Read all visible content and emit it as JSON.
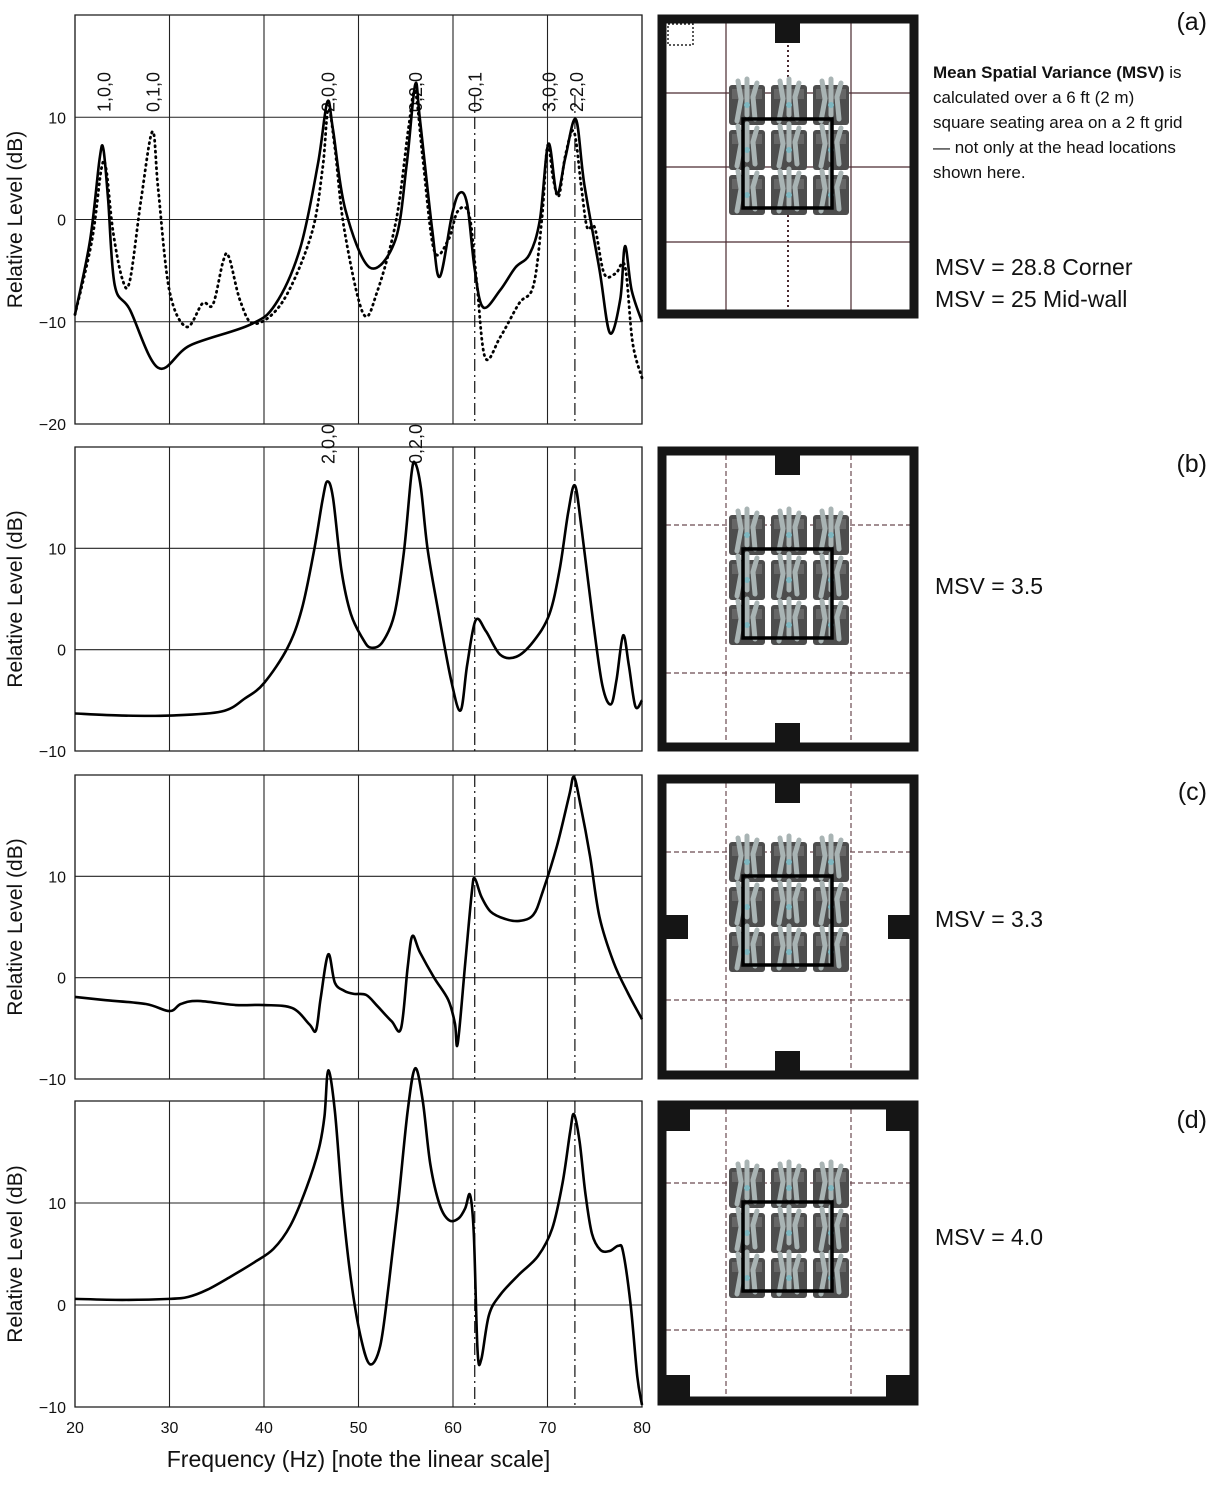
{
  "chart_data": [
    {
      "type": "line",
      "panel_label": "(a)",
      "ylabel": "Relative Level (dB)",
      "annotation_bold": "Mean Spatial Variance (MSV)",
      "annotation": "is calculated over a 6 ft (2 m) square seating area on a 2 ft grid — not only at the head locations shown here.",
      "msv": [
        "MSV = 28.8 Corner",
        "MSV = 25 Mid-wall"
      ],
      "xlim": [
        20,
        80
      ],
      "xticks": [
        20,
        30,
        40,
        50,
        60,
        70,
        80
      ],
      "show_xtick_labels": false,
      "ylim": [
        -20,
        20
      ],
      "yticks": [
        {
          "value": -20,
          "label": "−20"
        },
        {
          "value": -10,
          "label": "−10"
        },
        0,
        10
      ],
      "grid": true,
      "vlines": [
        62.3,
        72.9
      ],
      "mode_labels": [
        {
          "x": 23,
          "label": "1,0,0"
        },
        {
          "x": 28.2,
          "label": "0,1,0"
        },
        {
          "x": 46.7,
          "label": "2,0,0"
        },
        {
          "x": 56,
          "label": "0,2,0"
        },
        {
          "x": 62.3,
          "label": "0,0,1"
        },
        {
          "x": 70.1,
          "label": "3,0,0"
        },
        {
          "x": 73,
          "label": "2,2,0"
        }
      ],
      "series": [
        {
          "style": "solid",
          "color": "#000000",
          "x": [
            20,
            21.6,
            22.6,
            23.0,
            23.5,
            24.2,
            25.8,
            28.8,
            32.2,
            38.5,
            41.2,
            43.8,
            45.7,
            46.7,
            47.3,
            48.6,
            51.2,
            53.9,
            55.1,
            56.0,
            56.5,
            57.8,
            58.6,
            59.9,
            60.7,
            61.5,
            62.3,
            63.2,
            65.0,
            66.6,
            68.1,
            69.2,
            70.1,
            71.0,
            71.9,
            73.0,
            73.9,
            75.5,
            76.6,
            77.7,
            78.2,
            78.9,
            80
          ],
          "values": [
            -9.3,
            -2,
            5.9,
            6.9,
            2,
            -6.4,
            -8.8,
            -14.5,
            -12.3,
            -10.3,
            -8.3,
            -2.9,
            5.4,
            11.5,
            8.8,
            1,
            -4.7,
            -2,
            5.4,
            13.2,
            9.8,
            -1,
            -5.6,
            0.5,
            2.6,
            1.5,
            -4.9,
            -8.6,
            -6.9,
            -4.7,
            -3.4,
            0,
            7.4,
            2.5,
            6.1,
            9.8,
            3.4,
            -4.9,
            -11.1,
            -7.8,
            -2.6,
            -6.9,
            -10
          ]
        },
        {
          "style": "dotted",
          "color": "#000000",
          "x": [
            20,
            21.8,
            22.8,
            23.3,
            24,
            25,
            25.8,
            27,
            28.2,
            28.8,
            30,
            31.8,
            33.5,
            34.6,
            35.7,
            36.3,
            37.5,
            39,
            42,
            45,
            46.2,
            46.8,
            47.5,
            48.5,
            50.5,
            52,
            54,
            55.3,
            56.0,
            56.8,
            58,
            59.5,
            60.5,
            61.7,
            62.5,
            63.4,
            65,
            67,
            68.5,
            69.4,
            70.0,
            70.6,
            71.2,
            71.9,
            72.8,
            73.6,
            74.2,
            75,
            76,
            77.2,
            78.2,
            79,
            80
          ],
          "values": [
            -9.3,
            -2,
            5,
            4.9,
            -1,
            -5.8,
            -6,
            2,
            8.6,
            3,
            -7,
            -10.5,
            -8.2,
            -8.3,
            -4,
            -3.7,
            -8,
            -10.2,
            -8,
            -1.5,
            5,
            10.8,
            7,
            -1,
            -9.2,
            -7,
            0,
            9,
            12.5,
            6,
            -3,
            -2,
            0.8,
            0.5,
            -6,
            -13.5,
            -11.5,
            -8.2,
            -6.5,
            0,
            7.2,
            4,
            2.3,
            6.3,
            8.6,
            3,
            -0.8,
            -0.8,
            -5.3,
            -5.3,
            -4.6,
            -12,
            -15.5
          ]
        }
      ]
    },
    {
      "type": "line",
      "panel_label": "(b)",
      "ylabel": "Relative Level (dB)",
      "msv": [
        "MSV = 3.5"
      ],
      "xlim": [
        20,
        80
      ],
      "xticks": [
        20,
        30,
        40,
        50,
        60,
        70,
        80
      ],
      "show_xtick_labels": false,
      "ylim": [
        -10,
        20
      ],
      "yticks": [
        {
          "value": -10,
          "label": "−10"
        },
        0,
        10
      ],
      "grid": true,
      "vlines": [
        62.3,
        72.9
      ],
      "mode_labels": [
        {
          "x": 46.7,
          "label": "2,0,0"
        },
        {
          "x": 56,
          "label": "0,2,0"
        }
      ],
      "series": [
        {
          "style": "solid",
          "color": "#000000",
          "x": [
            20,
            25,
            30,
            35.5,
            38,
            40,
            42.5,
            44,
            45.3,
            46.2,
            46.7,
            47.3,
            48.2,
            49.2,
            50.5,
            51.3,
            52.5,
            53.8,
            54.8,
            55.6,
            56.0,
            56.6,
            57.3,
            58.4,
            59.8,
            60.8,
            61.5,
            62.4,
            63.5,
            65,
            66.7,
            68.5,
            70.2,
            71.3,
            72.2,
            72.9,
            73.6,
            74.8,
            75.8,
            76.7,
            77.3,
            78.0,
            78.6,
            79.3,
            80
          ],
          "values": [
            -6.3,
            -6.5,
            -6.5,
            -6.1,
            -4.8,
            -3.3,
            0.2,
            4,
            9.8,
            14.8,
            16.6,
            15,
            7.8,
            3.5,
            1.0,
            0.2,
            0.7,
            3.5,
            9.6,
            17.3,
            18.4,
            16,
            10,
            4,
            -3,
            -6.0,
            -1.5,
            2.9,
            1.8,
            -0.5,
            -0.7,
            0.8,
            3.5,
            8,
            13.6,
            16.2,
            12,
            3,
            -3.5,
            -5.4,
            -3,
            1.4,
            -1.5,
            -5.6,
            -5.0
          ]
        }
      ]
    },
    {
      "type": "line",
      "panel_label": "(c)",
      "ylabel": "Relative Level (dB)",
      "msv": [
        "MSV = 3.3"
      ],
      "xlim": [
        20,
        80
      ],
      "xticks": [
        20,
        30,
        40,
        50,
        60,
        70,
        80
      ],
      "show_xtick_labels": false,
      "ylim": [
        -10,
        20
      ],
      "yticks": [
        {
          "value": -10,
          "label": "−10"
        },
        0,
        10
      ],
      "grid": true,
      "vlines": [
        62.3,
        72.9
      ],
      "series": [
        {
          "style": "solid",
          "color": "#000000",
          "x": [
            20,
            23,
            27.5,
            30,
            31.2,
            33,
            37,
            40,
            43,
            44.8,
            45.5,
            46,
            46.8,
            47.5,
            48.5,
            49.5,
            50.8,
            52,
            53.5,
            54.5,
            55.2,
            55.7,
            56.5,
            58,
            59.5,
            60.2,
            60.5,
            61.3,
            62.0,
            62.3,
            63,
            64,
            65.5,
            67,
            68.5,
            69.5,
            71,
            72.3,
            72.8,
            73.5,
            74.5,
            75.5,
            77,
            78.5,
            80
          ],
          "values": [
            -1.9,
            -2.2,
            -2.6,
            -3.3,
            -2.6,
            -2.3,
            -2.7,
            -2.7,
            -3,
            -4.6,
            -5.2,
            -2,
            2.3,
            -0.5,
            -1.3,
            -1.6,
            -1.7,
            -2.8,
            -4.3,
            -5,
            1,
            4.1,
            2.5,
            0,
            -2.2,
            -4.5,
            -6.5,
            1.5,
            8.5,
            9.8,
            8,
            6.5,
            5.8,
            5.6,
            6.2,
            8.5,
            13,
            18,
            19.8,
            17,
            12,
            6,
            1.5,
            -1.5,
            -4.1
          ]
        }
      ]
    },
    {
      "type": "line",
      "panel_label": "(d)",
      "ylabel": "Relative Level (dB)",
      "msv": [
        "MSV = 4.0"
      ],
      "xlabel": "Frequency (Hz) [note the linear scale]",
      "xlim": [
        20,
        80
      ],
      "xticks": [
        20,
        30,
        40,
        50,
        60,
        70,
        80
      ],
      "show_xtick_labels": true,
      "ylim": [
        -10,
        20
      ],
      "yticks": [
        {
          "value": -10,
          "label": "−10"
        },
        0,
        10
      ],
      "grid": true,
      "vlines": [
        62.3,
        72.9
      ],
      "series": [
        {
          "style": "solid",
          "color": "#000000",
          "x": [
            20,
            25,
            30,
            32,
            34,
            36.5,
            39,
            41,
            42.8,
            44.5,
            45.8,
            46.4,
            46.8,
            47.5,
            48.3,
            49.2,
            50.2,
            51.2,
            52.3,
            53.2,
            54.2,
            55.2,
            56.0,
            56.8,
            57.6,
            58.6,
            59.6,
            60.6,
            61.3,
            61.8,
            62.2,
            62.6,
            63,
            63.8,
            65,
            67,
            69,
            70.5,
            71.6,
            72.4,
            72.8,
            73.4,
            74,
            74.7,
            75.6,
            76.6,
            77.5,
            78.0,
            78.8,
            79.5,
            80
          ],
          "values": [
            0.6,
            0.5,
            0.6,
            0.8,
            1.5,
            2.8,
            4.2,
            5.5,
            7.8,
            11.5,
            15.3,
            18.5,
            23.0,
            19,
            10,
            2.5,
            -3,
            -5.8,
            -4,
            2,
            10,
            19,
            23.2,
            20,
            13.8,
            9.8,
            8.3,
            8.5,
            9.5,
            10.8,
            7,
            -4.5,
            -5.3,
            -1,
            1,
            3,
            4.8,
            7.5,
            12,
            17,
            18.7,
            16,
            11,
            7,
            5.4,
            5.3,
            5.8,
            5.2,
            0,
            -7,
            -9.8
          ]
        }
      ]
    }
  ]
}
